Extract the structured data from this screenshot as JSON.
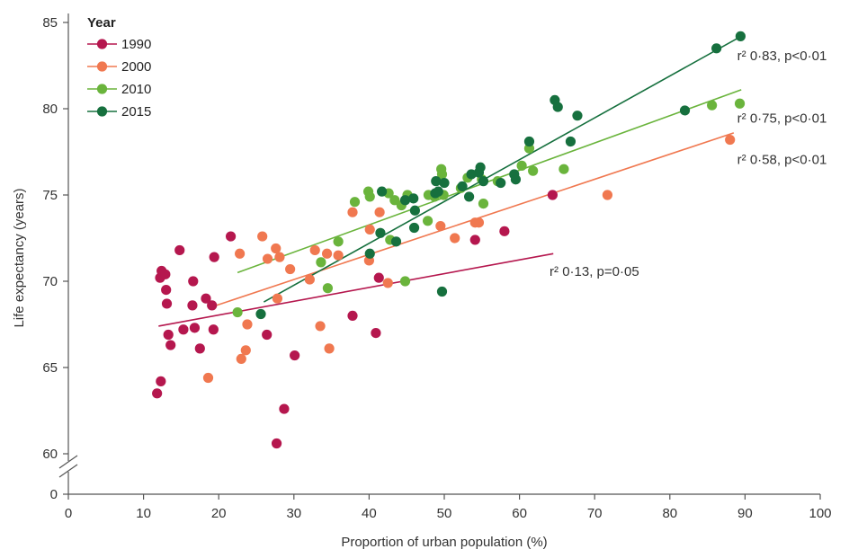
{
  "chart_data": {
    "type": "scatter",
    "title": "",
    "xlabel": "Proportion of urban population (%)",
    "ylabel": "Life expectancy (years)",
    "xlim": [
      0,
      100
    ],
    "xticks": [
      "0",
      "10",
      "20",
      "30",
      "40",
      "50",
      "60",
      "70",
      "80",
      "90",
      "100"
    ],
    "yticks": [
      "0",
      "60",
      "65",
      "70",
      "75",
      "80",
      "85"
    ],
    "y_axis_break": true,
    "legend": {
      "title": "Year",
      "placement": "top-left"
    },
    "series": [
      {
        "name": "1990",
        "color": "#b5174e",
        "points": [
          [
            11.8,
            63.5
          ],
          [
            12.3,
            64.2
          ],
          [
            12.2,
            70.2
          ],
          [
            12.4,
            70.6
          ],
          [
            12.9,
            70.4
          ],
          [
            13.0,
            69.5
          ],
          [
            13.1,
            68.7
          ],
          [
            13.3,
            66.9
          ],
          [
            13.6,
            66.3
          ],
          [
            14.8,
            71.8
          ],
          [
            15.3,
            67.2
          ],
          [
            16.5,
            68.6
          ],
          [
            16.6,
            70.0
          ],
          [
            16.8,
            67.3
          ],
          [
            17.5,
            66.1
          ],
          [
            18.3,
            69.0
          ],
          [
            19.1,
            68.6
          ],
          [
            19.3,
            67.2
          ],
          [
            19.4,
            71.4
          ],
          [
            21.6,
            72.6
          ],
          [
            26.4,
            66.9
          ],
          [
            27.7,
            60.6
          ],
          [
            28.7,
            62.6
          ],
          [
            30.1,
            65.7
          ],
          [
            37.8,
            68.0
          ],
          [
            40.9,
            67.0
          ],
          [
            41.3,
            70.2
          ],
          [
            54.1,
            72.4
          ],
          [
            58.0,
            72.9
          ],
          [
            64.4,
            75.0
          ]
        ],
        "fit": {
          "x": [
            12,
            64.5
          ],
          "y": [
            67.4,
            71.6
          ]
        },
        "annotation": {
          "text": "r² 0·13, p=0·05",
          "x": 64,
          "y": 70.3
        }
      },
      {
        "name": "2000",
        "color": "#f07850",
        "points": [
          [
            18.6,
            64.4
          ],
          [
            22.8,
            71.6
          ],
          [
            23.0,
            65.5
          ],
          [
            23.6,
            66.0
          ],
          [
            23.8,
            67.5
          ],
          [
            25.8,
            72.6
          ],
          [
            26.5,
            71.3
          ],
          [
            27.6,
            71.9
          ],
          [
            27.8,
            69.0
          ],
          [
            28.1,
            71.4
          ],
          [
            29.5,
            70.7
          ],
          [
            32.1,
            70.1
          ],
          [
            32.8,
            71.8
          ],
          [
            33.5,
            67.4
          ],
          [
            34.4,
            71.6
          ],
          [
            34.7,
            66.1
          ],
          [
            35.9,
            71.5
          ],
          [
            37.8,
            74.0
          ],
          [
            40.0,
            71.2
          ],
          [
            40.1,
            73.0
          ],
          [
            41.4,
            74.0
          ],
          [
            42.5,
            69.9
          ],
          [
            49.5,
            73.2
          ],
          [
            51.4,
            72.5
          ],
          [
            54.1,
            73.4
          ],
          [
            54.6,
            73.4
          ],
          [
            71.7,
            75.0
          ],
          [
            88.0,
            78.2
          ]
        ],
        "fit": {
          "x": [
            19,
            88.5
          ],
          "y": [
            68.5,
            78.6
          ]
        },
        "annotation": {
          "text": "r² 0·58, p<0·01",
          "x": 88,
          "y": 76.8
        }
      },
      {
        "name": "2010",
        "color": "#6ab43c",
        "points": [
          [
            22.5,
            68.2
          ],
          [
            33.6,
            71.1
          ],
          [
            34.5,
            69.6
          ],
          [
            35.9,
            72.3
          ],
          [
            38.1,
            74.6
          ],
          [
            39.9,
            75.2
          ],
          [
            40.1,
            74.9
          ],
          [
            42.6,
            75.1
          ],
          [
            42.8,
            72.4
          ],
          [
            43.4,
            74.7
          ],
          [
            44.3,
            74.4
          ],
          [
            44.8,
            70.0
          ],
          [
            45.1,
            75.0
          ],
          [
            47.8,
            73.5
          ],
          [
            47.9,
            75.0
          ],
          [
            48.7,
            74.9
          ],
          [
            49.6,
            76.5
          ],
          [
            49.7,
            76.2
          ],
          [
            49.9,
            75.0
          ],
          [
            52.2,
            75.4
          ],
          [
            53.1,
            76.0
          ],
          [
            55.0,
            75.9
          ],
          [
            55.2,
            74.5
          ],
          [
            57.1,
            75.8
          ],
          [
            60.3,
            76.7
          ],
          [
            61.3,
            77.7
          ],
          [
            61.8,
            76.4
          ],
          [
            65.9,
            76.5
          ],
          [
            85.6,
            80.2
          ],
          [
            89.3,
            80.3
          ]
        ],
        "fit": {
          "x": [
            22.5,
            89.5
          ],
          "y": [
            70.5,
            81.1
          ]
        },
        "annotation": {
          "text": "r² 0·75, p<0·01",
          "x": 88,
          "y": 79.2
        }
      },
      {
        "name": "2015",
        "color": "#16703e",
        "points": [
          [
            25.6,
            68.1
          ],
          [
            40.1,
            71.6
          ],
          [
            41.5,
            72.8
          ],
          [
            41.7,
            75.2
          ],
          [
            43.6,
            72.3
          ],
          [
            44.8,
            74.7
          ],
          [
            45.9,
            74.8
          ],
          [
            46.0,
            73.1
          ],
          [
            46.1,
            74.1
          ],
          [
            48.8,
            75.1
          ],
          [
            48.9,
            75.8
          ],
          [
            49.2,
            75.2
          ],
          [
            49.7,
            69.4
          ],
          [
            50.0,
            75.7
          ],
          [
            52.4,
            75.5
          ],
          [
            53.3,
            74.9
          ],
          [
            53.6,
            76.2
          ],
          [
            54.6,
            76.3
          ],
          [
            54.8,
            76.6
          ],
          [
            55.2,
            75.8
          ],
          [
            57.5,
            75.7
          ],
          [
            59.3,
            76.2
          ],
          [
            59.5,
            75.9
          ],
          [
            61.3,
            78.1
          ],
          [
            64.7,
            80.5
          ],
          [
            65.1,
            80.1
          ],
          [
            66.8,
            78.1
          ],
          [
            67.7,
            79.6
          ],
          [
            82.0,
            79.9
          ],
          [
            86.2,
            83.5
          ],
          [
            89.4,
            84.2
          ]
        ],
        "fit": {
          "x": [
            26,
            89.5
          ],
          "y": [
            68.8,
            84.2
          ]
        },
        "annotation": {
          "text": "r² 0·83, p<0·01",
          "x": 88,
          "y": 82.8
        }
      }
    ]
  }
}
